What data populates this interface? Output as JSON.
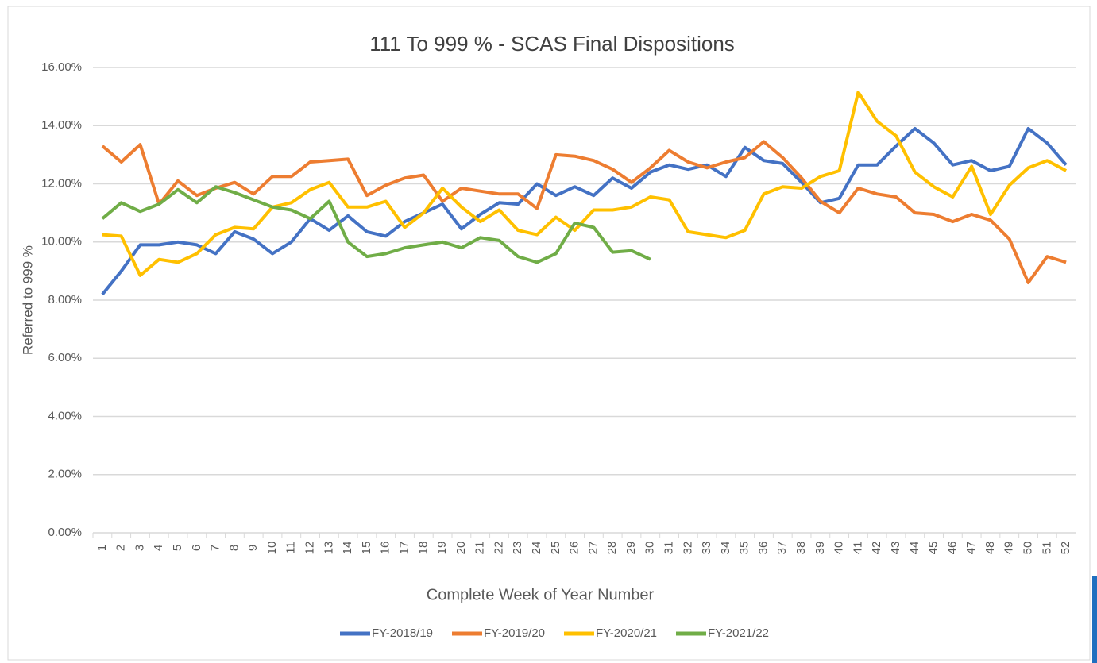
{
  "chart_data": {
    "type": "line",
    "title": "111 To 999 % - SCAS Final Dispositions",
    "x_label": "Complete Week of Year Number",
    "y_label": "Referred to 999 %",
    "categories": [
      "1",
      "2",
      "3",
      "4",
      "5",
      "6",
      "7",
      "8",
      "9",
      "10",
      "11",
      "12",
      "13",
      "14",
      "15",
      "16",
      "17",
      "18",
      "19",
      "20",
      "21",
      "22",
      "23",
      "24",
      "25",
      "26",
      "27",
      "28",
      "29",
      "30",
      "31",
      "32",
      "33",
      "34",
      "35",
      "36",
      "37",
      "38",
      "39",
      "40",
      "41",
      "42",
      "43",
      "44",
      "45",
      "46",
      "47",
      "48",
      "49",
      "50",
      "51",
      "52"
    ],
    "series": [
      {
        "name": "FY-2018/19",
        "color": "#4472c4",
        "values": [
          8.2,
          9.0,
          9.9,
          9.9,
          10.0,
          9.9,
          9.6,
          10.35,
          10.1,
          9.6,
          10.0,
          10.8,
          10.4,
          10.9,
          10.35,
          10.2,
          10.7,
          11.0,
          11.3,
          10.45,
          10.95,
          11.35,
          11.3,
          12.0,
          11.6,
          11.9,
          11.6,
          12.2,
          11.85,
          12.4,
          12.65,
          12.5,
          12.65,
          12.25,
          13.25,
          12.8,
          12.7,
          12.05,
          11.35,
          11.5,
          12.65,
          12.65,
          13.3,
          13.9,
          13.4,
          12.65,
          12.8,
          12.45,
          12.6,
          13.9,
          13.4,
          12.65
        ]
      },
      {
        "name": "FY-2019/20",
        "color": "#ed7d31",
        "values": [
          13.3,
          12.75,
          13.35,
          11.3,
          12.1,
          11.6,
          11.85,
          12.05,
          11.65,
          12.25,
          12.25,
          12.75,
          12.8,
          12.85,
          11.6,
          11.95,
          12.2,
          12.3,
          11.4,
          11.85,
          11.75,
          11.65,
          11.65,
          11.15,
          13.0,
          12.95,
          12.8,
          12.5,
          12.05,
          12.55,
          13.15,
          12.75,
          12.55,
          12.75,
          12.9,
          13.45,
          12.9,
          12.2,
          11.4,
          11.0,
          11.85,
          11.65,
          11.55,
          11.0,
          10.95,
          10.7,
          10.95,
          10.75,
          10.1,
          8.6,
          9.5,
          9.3
        ]
      },
      {
        "name": "FY-2020/21",
        "color": "#ffc000",
        "values": [
          10.25,
          10.2,
          8.85,
          9.4,
          9.3,
          9.6,
          10.25,
          10.5,
          10.45,
          11.2,
          11.35,
          11.8,
          12.05,
          11.2,
          11.2,
          11.4,
          10.5,
          11.0,
          11.85,
          11.2,
          10.7,
          11.1,
          10.4,
          10.25,
          10.85,
          10.4,
          11.1,
          11.1,
          11.2,
          11.55,
          11.45,
          10.35,
          10.25,
          10.15,
          10.4,
          11.65,
          11.9,
          11.85,
          12.25,
          12.45,
          15.15,
          14.15,
          13.65,
          12.4,
          11.9,
          11.55,
          12.6,
          10.95,
          11.95,
          12.55,
          12.8,
          12.45
        ]
      },
      {
        "name": "FY-2021/22",
        "color": "#70ad47",
        "values": [
          10.8,
          11.35,
          11.05,
          11.3,
          11.8,
          11.35,
          11.9,
          11.7,
          11.45,
          11.2,
          11.1,
          10.8,
          11.4,
          10.0,
          9.5,
          9.6,
          9.8,
          9.9,
          10.0,
          9.8,
          10.15,
          10.05,
          9.5,
          9.3,
          9.6,
          10.65,
          10.5,
          9.65,
          9.7,
          9.4,
          null,
          null,
          null,
          null,
          null,
          null,
          null,
          null,
          null,
          null,
          null,
          null,
          null,
          null,
          null,
          null,
          null,
          null,
          null,
          null,
          null,
          null
        ]
      }
    ],
    "ylim": [
      0,
      16
    ],
    "yticks": [
      {
        "value": 0,
        "label": "0.00%"
      },
      {
        "value": 2,
        "label": "2.00%"
      },
      {
        "value": 4,
        "label": "4.00%"
      },
      {
        "value": 6,
        "label": "6.00%"
      },
      {
        "value": 8,
        "label": "8.00%"
      },
      {
        "value": 10,
        "label": "10.00%"
      },
      {
        "value": 12,
        "label": "12.00%"
      },
      {
        "value": 14,
        "label": "14.00%"
      },
      {
        "value": 16,
        "label": "16.00%"
      }
    ],
    "grid": true,
    "legend": "bottom"
  }
}
